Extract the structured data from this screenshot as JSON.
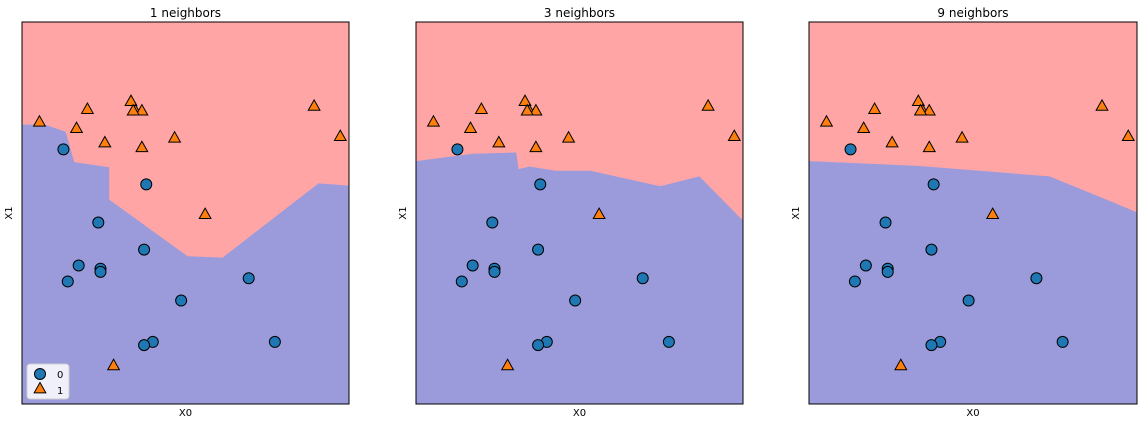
{
  "chart_data": [
    {
      "type": "scatter",
      "title": "1 neighbors",
      "xlabel": "X0",
      "ylabel": "X1",
      "boundary": [
        [
          -1,
          3.77
        ],
        [
          -0.5,
          3.79
        ],
        [
          0,
          3.55
        ],
        [
          0.2,
          2.6
        ],
        [
          1.0,
          2.44
        ],
        [
          1.0,
          1.42
        ],
        [
          2.8,
          -0.36
        ],
        [
          3.6,
          -0.4
        ],
        [
          5.8,
          1.93
        ],
        [
          6.5,
          1.86
        ]
      ]
    },
    {
      "type": "scatter",
      "title": "3 neighbors",
      "xlabel": "X0",
      "ylabel": "X1",
      "boundary": [
        [
          -1,
          2.63
        ],
        [
          0.3,
          2.86
        ],
        [
          1.3,
          2.9
        ],
        [
          1.35,
          2.38
        ],
        [
          1.6,
          2.46
        ],
        [
          2.2,
          2.33
        ],
        [
          3.0,
          2.33
        ],
        [
          4.6,
          1.84
        ],
        [
          5.5,
          2.15
        ],
        [
          6.5,
          0.76
        ]
      ]
    },
    {
      "type": "scatter",
      "title": "9 neighbors",
      "xlabel": "X0",
      "ylabel": "X1",
      "boundary": [
        [
          -1,
          2.63
        ],
        [
          1.5,
          2.48
        ],
        [
          4.5,
          2.15
        ],
        [
          6.0,
          1.31
        ],
        [
          6.5,
          1.02
        ]
      ]
    }
  ],
  "shared": {
    "xlim": [
      -1,
      6.5
    ],
    "ylim": [
      -5,
      7
    ],
    "class_names": [
      "0",
      "1"
    ],
    "legend": {
      "location": "lower-left",
      "entries": [
        "0",
        "1"
      ]
    },
    "colors": {
      "region_0": "#9b9bdc",
      "region_1": "#ffa5a5",
      "class_0": "#1f77b4",
      "class_1": "#ff7f0e",
      "edge": "#000000"
    },
    "points": [
      {
        "x": -0.05,
        "y": 3.0,
        "cls": 0
      },
      {
        "x": 1.85,
        "y": 1.9,
        "cls": 0
      },
      {
        "x": 0.75,
        "y": 0.7,
        "cls": 0
      },
      {
        "x": 1.8,
        "y": -0.15,
        "cls": 0
      },
      {
        "x": 0.3,
        "y": -0.65,
        "cls": 0
      },
      {
        "x": 0.8,
        "y": -0.75,
        "cls": 0
      },
      {
        "x": 0.8,
        "y": -0.85,
        "cls": 0
      },
      {
        "x": 0.05,
        "y": -1.15,
        "cls": 0
      },
      {
        "x": 2.65,
        "y": -1.75,
        "cls": 0
      },
      {
        "x": 4.2,
        "y": -1.05,
        "cls": 0
      },
      {
        "x": 4.8,
        "y": -3.05,
        "cls": 0
      },
      {
        "x": 2.0,
        "y": -3.05,
        "cls": 0
      },
      {
        "x": 1.8,
        "y": -3.15,
        "cls": 0
      },
      {
        "x": 1.1,
        "y": -3.8,
        "cls": 1
      },
      {
        "x": 1.5,
        "y": 4.5,
        "cls": 1
      },
      {
        "x": 1.6,
        "y": 4.2,
        "cls": 1
      },
      {
        "x": 1.75,
        "y": 4.2,
        "cls": 1
      },
      {
        "x": 1.55,
        "y": 4.2,
        "cls": 1
      },
      {
        "x": 0.5,
        "y": 4.25,
        "cls": 1
      },
      {
        "x": -0.6,
        "y": 3.85,
        "cls": 1
      },
      {
        "x": 0.25,
        "y": 3.65,
        "cls": 1
      },
      {
        "x": 2.5,
        "y": 3.35,
        "cls": 1
      },
      {
        "x": 0.9,
        "y": 3.2,
        "cls": 1
      },
      {
        "x": 1.75,
        "y": 3.05,
        "cls": 1
      },
      {
        "x": 5.7,
        "y": 4.35,
        "cls": 1
      },
      {
        "x": 6.3,
        "y": 3.4,
        "cls": 1
      },
      {
        "x": 3.2,
        "y": 0.95,
        "cls": 1
      }
    ]
  }
}
